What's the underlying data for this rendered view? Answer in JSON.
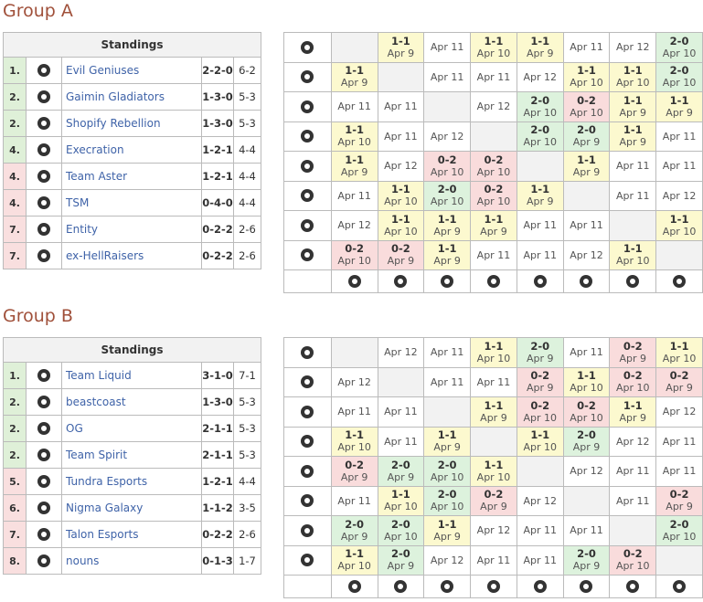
{
  "groups": [
    {
      "title": "Group A",
      "standings": {
        "header": "Standings",
        "rows": [
          {
            "rank": "1.",
            "team": "Evil Geniuses",
            "record": "2-2-0",
            "games": "6-2",
            "color": "#dff0d8"
          },
          {
            "rank": "2.",
            "team": "Gaimin Gladiators",
            "record": "1-3-0",
            "games": "5-3",
            "color": "#dff0d8"
          },
          {
            "rank": "2.",
            "team": "Shopify Rebellion",
            "record": "1-3-0",
            "games": "5-3",
            "color": "#dff0d8"
          },
          {
            "rank": "4.",
            "team": "Execration",
            "record": "1-2-1",
            "games": "4-4",
            "color": "#dff0d8"
          },
          {
            "rank": "4.",
            "team": "Team Aster",
            "record": "1-2-1",
            "games": "4-4",
            "color": "#f9dfdf"
          },
          {
            "rank": "4.",
            "team": "TSM",
            "record": "0-4-0",
            "games": "4-4",
            "color": "#f9dfdf"
          },
          {
            "rank": "7.",
            "team": "Entity",
            "record": "0-2-2",
            "games": "2-6",
            "color": "#f9dfdf"
          },
          {
            "rank": "7.",
            "team": "ex-HellRaisers",
            "record": "0-2-2",
            "games": "2-6",
            "color": "#f9dfdf"
          }
        ]
      },
      "crosstable": [
        [
          null,
          {
            "score": "1-1",
            "date": "Apr 9"
          },
          {
            "date": "Apr 11"
          },
          {
            "score": "1-1",
            "date": "Apr 10"
          },
          {
            "score": "1-1",
            "date": "Apr 9"
          },
          {
            "date": "Apr 11"
          },
          {
            "date": "Apr 12"
          },
          {
            "score": "2-0",
            "date": "Apr 10"
          }
        ],
        [
          {
            "score": "1-1",
            "date": "Apr 9"
          },
          null,
          {
            "date": "Apr 11"
          },
          {
            "date": "Apr 11"
          },
          {
            "date": "Apr 12"
          },
          {
            "score": "1-1",
            "date": "Apr 10"
          },
          {
            "score": "1-1",
            "date": "Apr 10"
          },
          {
            "score": "2-0",
            "date": "Apr 10"
          }
        ],
        [
          {
            "date": "Apr 11"
          },
          {
            "date": "Apr 11"
          },
          null,
          {
            "date": "Apr 12"
          },
          {
            "score": "2-0",
            "date": "Apr 10"
          },
          {
            "score": "0-2",
            "date": "Apr 10"
          },
          {
            "score": "1-1",
            "date": "Apr 9"
          },
          {
            "score": "1-1",
            "date": "Apr 9"
          }
        ],
        [
          {
            "score": "1-1",
            "date": "Apr 10"
          },
          {
            "date": "Apr 11"
          },
          {
            "date": "Apr 12"
          },
          null,
          {
            "score": "2-0",
            "date": "Apr 10"
          },
          {
            "score": "2-0",
            "date": "Apr 9"
          },
          {
            "score": "1-1",
            "date": "Apr 9"
          },
          {
            "date": "Apr 11"
          }
        ],
        [
          {
            "score": "1-1",
            "date": "Apr 9"
          },
          {
            "date": "Apr 12"
          },
          {
            "score": "0-2",
            "date": "Apr 10"
          },
          {
            "score": "0-2",
            "date": "Apr 10"
          },
          null,
          {
            "score": "1-1",
            "date": "Apr 9"
          },
          {
            "date": "Apr 11"
          },
          {
            "date": "Apr 11"
          }
        ],
        [
          {
            "date": "Apr 11"
          },
          {
            "score": "1-1",
            "date": "Apr 10"
          },
          {
            "score": "2-0",
            "date": "Apr 10"
          },
          {
            "score": "0-2",
            "date": "Apr 10"
          },
          {
            "score": "1-1",
            "date": "Apr 9"
          },
          null,
          {
            "date": "Apr 11"
          },
          {
            "date": "Apr 12"
          }
        ],
        [
          {
            "date": "Apr 12"
          },
          {
            "score": "1-1",
            "date": "Apr 10"
          },
          {
            "score": "1-1",
            "date": "Apr 9"
          },
          {
            "score": "1-1",
            "date": "Apr 9"
          },
          {
            "date": "Apr 11"
          },
          {
            "date": "Apr 11"
          },
          null,
          {
            "score": "1-1",
            "date": "Apr 10"
          }
        ],
        [
          {
            "score": "0-2",
            "date": "Apr 10"
          },
          {
            "score": "0-2",
            "date": "Apr 9"
          },
          {
            "score": "1-1",
            "date": "Apr 9"
          },
          {
            "date": "Apr 11"
          },
          {
            "date": "Apr 11"
          },
          {
            "date": "Apr 12"
          },
          {
            "score": "1-1",
            "date": "Apr 10"
          },
          null
        ]
      ]
    },
    {
      "title": "Group B",
      "standings": {
        "header": "Standings",
        "rows": [
          {
            "rank": "1.",
            "team": "Team Liquid",
            "record": "3-1-0",
            "games": "7-1",
            "color": "#dff0d8"
          },
          {
            "rank": "2.",
            "team": "beastcoast",
            "record": "1-3-0",
            "games": "5-3",
            "color": "#dff0d8"
          },
          {
            "rank": "2.",
            "team": "OG",
            "record": "2-1-1",
            "games": "5-3",
            "color": "#dff0d8"
          },
          {
            "rank": "2.",
            "team": "Team Spirit",
            "record": "2-1-1",
            "games": "5-3",
            "color": "#dff0d8"
          },
          {
            "rank": "5.",
            "team": "Tundra Esports",
            "record": "1-2-1",
            "games": "4-4",
            "color": "#f9dfdf"
          },
          {
            "rank": "6.",
            "team": "Nigma Galaxy",
            "record": "1-1-2",
            "games": "3-5",
            "color": "#f9dfdf"
          },
          {
            "rank": "7.",
            "team": "Talon Esports",
            "record": "0-2-2",
            "games": "2-6",
            "color": "#f9dfdf"
          },
          {
            "rank": "8.",
            "team": "nouns",
            "record": "0-1-3",
            "games": "1-7",
            "color": "#f9dfdf"
          }
        ]
      },
      "crosstable": [
        [
          null,
          {
            "date": "Apr 12"
          },
          {
            "date": "Apr 11"
          },
          {
            "score": "1-1",
            "date": "Apr 10"
          },
          {
            "score": "2-0",
            "date": "Apr 9"
          },
          {
            "date": "Apr 11"
          },
          {
            "score": "0-2",
            "date": "Apr 9"
          },
          {
            "score": "1-1",
            "date": "Apr 10"
          }
        ],
        [
          {
            "date": "Apr 12"
          },
          null,
          {
            "date": "Apr 11"
          },
          {
            "date": "Apr 11"
          },
          {
            "score": "0-2",
            "date": "Apr 9"
          },
          {
            "score": "1-1",
            "date": "Apr 10"
          },
          {
            "score": "0-2",
            "date": "Apr 10"
          },
          {
            "score": "0-2",
            "date": "Apr 9"
          }
        ],
        [
          {
            "date": "Apr 11"
          },
          {
            "date": "Apr 11"
          },
          null,
          {
            "score": "1-1",
            "date": "Apr 9"
          },
          {
            "score": "0-2",
            "date": "Apr 10"
          },
          {
            "score": "0-2",
            "date": "Apr 10"
          },
          {
            "score": "1-1",
            "date": "Apr 9"
          },
          {
            "date": "Apr 12"
          }
        ],
        [
          {
            "score": "1-1",
            "date": "Apr 10"
          },
          {
            "date": "Apr 11"
          },
          {
            "score": "1-1",
            "date": "Apr 9"
          },
          null,
          {
            "score": "1-1",
            "date": "Apr 10"
          },
          {
            "score": "2-0",
            "date": "Apr 9"
          },
          {
            "date": "Apr 12"
          },
          {
            "date": "Apr 11"
          }
        ],
        [
          {
            "score": "0-2",
            "date": "Apr 9"
          },
          {
            "score": "2-0",
            "date": "Apr 9"
          },
          {
            "score": "2-0",
            "date": "Apr 10"
          },
          {
            "score": "1-1",
            "date": "Apr 10"
          },
          null,
          {
            "date": "Apr 12"
          },
          {
            "date": "Apr 11"
          },
          {
            "date": "Apr 11"
          }
        ],
        [
          {
            "date": "Apr 11"
          },
          {
            "score": "1-1",
            "date": "Apr 10"
          },
          {
            "score": "2-0",
            "date": "Apr 10"
          },
          {
            "score": "0-2",
            "date": "Apr 9"
          },
          {
            "date": "Apr 12"
          },
          null,
          {
            "date": "Apr 11"
          },
          {
            "score": "0-2",
            "date": "Apr 9"
          }
        ],
        [
          {
            "score": "2-0",
            "date": "Apr 9"
          },
          {
            "score": "2-0",
            "date": "Apr 10"
          },
          {
            "score": "1-1",
            "date": "Apr 9"
          },
          {
            "date": "Apr 12"
          },
          {
            "date": "Apr 11"
          },
          {
            "date": "Apr 11"
          },
          null,
          {
            "score": "2-0",
            "date": "Apr 10"
          }
        ],
        [
          {
            "score": "1-1",
            "date": "Apr 10"
          },
          {
            "score": "2-0",
            "date": "Apr 9"
          },
          {
            "date": "Apr 12"
          },
          {
            "date": "Apr 11"
          },
          {
            "date": "Apr 11"
          },
          {
            "score": "2-0",
            "date": "Apr 9"
          },
          {
            "score": "0-2",
            "date": "Apr 10"
          },
          null
        ]
      ]
    }
  ]
}
